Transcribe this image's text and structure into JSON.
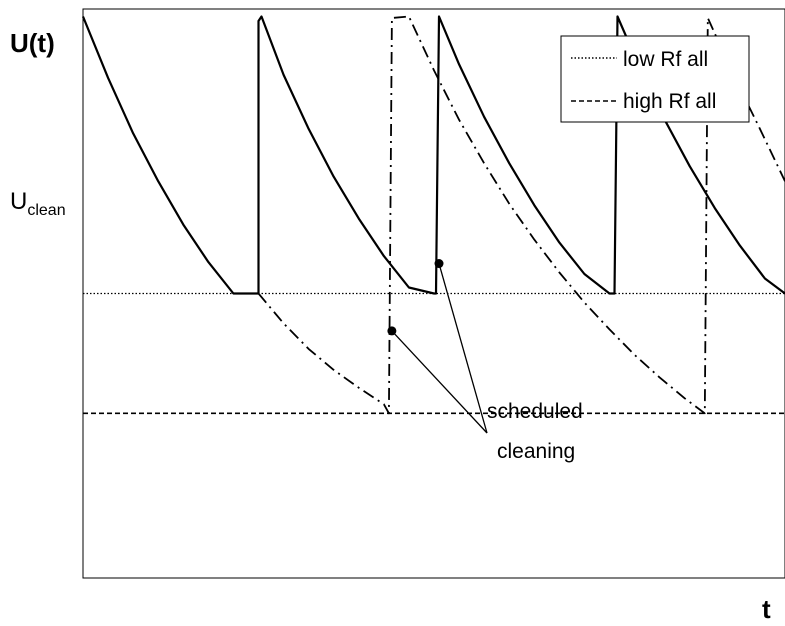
{
  "chart_data": {
    "type": "line",
    "ylabel": "U(t)",
    "xlabel": "t",
    "y_level_label": {
      "main": "U",
      "sub": "clean"
    },
    "legend": {
      "position": "top-right",
      "entries": [
        {
          "label": "low Rf all",
          "style": "dotted"
        },
        {
          "label": "high Rf all",
          "style": "dashed"
        }
      ]
    },
    "annotation": {
      "line1": "scheduled",
      "line2": "cleaning"
    },
    "grid": false,
    "xlim": [
      0,
      700
    ],
    "ylim": [
      0,
      380
    ],
    "reference_lines": [
      {
        "name": "low Rf all",
        "style": "dotted",
        "y": 190
      },
      {
        "name": "high Rf all",
        "style": "dashed",
        "y": 110
      }
    ],
    "series": [
      {
        "style": "solid",
        "x": [
          0,
          25,
          50,
          75,
          100,
          125,
          150,
          175,
          175,
          178,
          200,
          225,
          250,
          275,
          300,
          325,
          350,
          352,
          355,
          375,
          400,
          425,
          450,
          475,
          500,
          525,
          530,
          533,
          555,
          580,
          605,
          630,
          655,
          680,
          700
        ],
        "y": [
          375,
          334,
          297,
          265,
          236,
          211,
          190,
          190,
          372,
          375,
          336,
          300,
          268,
          240,
          215,
          194,
          190,
          190,
          375,
          343,
          308,
          277,
          249,
          224,
          203,
          190,
          190,
          375,
          341,
          306,
          275,
          247,
          222,
          200,
          190
        ]
      },
      {
        "style": "dashdot",
        "x": [
          175,
          200,
          225,
          250,
          275,
          300,
          305,
          305,
          308,
          325,
          350,
          375,
          400,
          425,
          450,
          475,
          500,
          525,
          550,
          575,
          600,
          620,
          620,
          623,
          650,
          675,
          700
        ],
        "y": [
          190,
          170,
          153,
          139,
          127,
          116,
          110,
          110,
          374,
          375,
          339,
          306,
          277,
          250,
          226,
          204,
          184,
          166,
          149,
          134,
          120,
          110,
          110,
          374,
          334,
          300,
          265
        ]
      }
    ],
    "markers": [
      {
        "x": 355,
        "y": 210
      },
      {
        "x": 308,
        "y": 165
      }
    ]
  }
}
